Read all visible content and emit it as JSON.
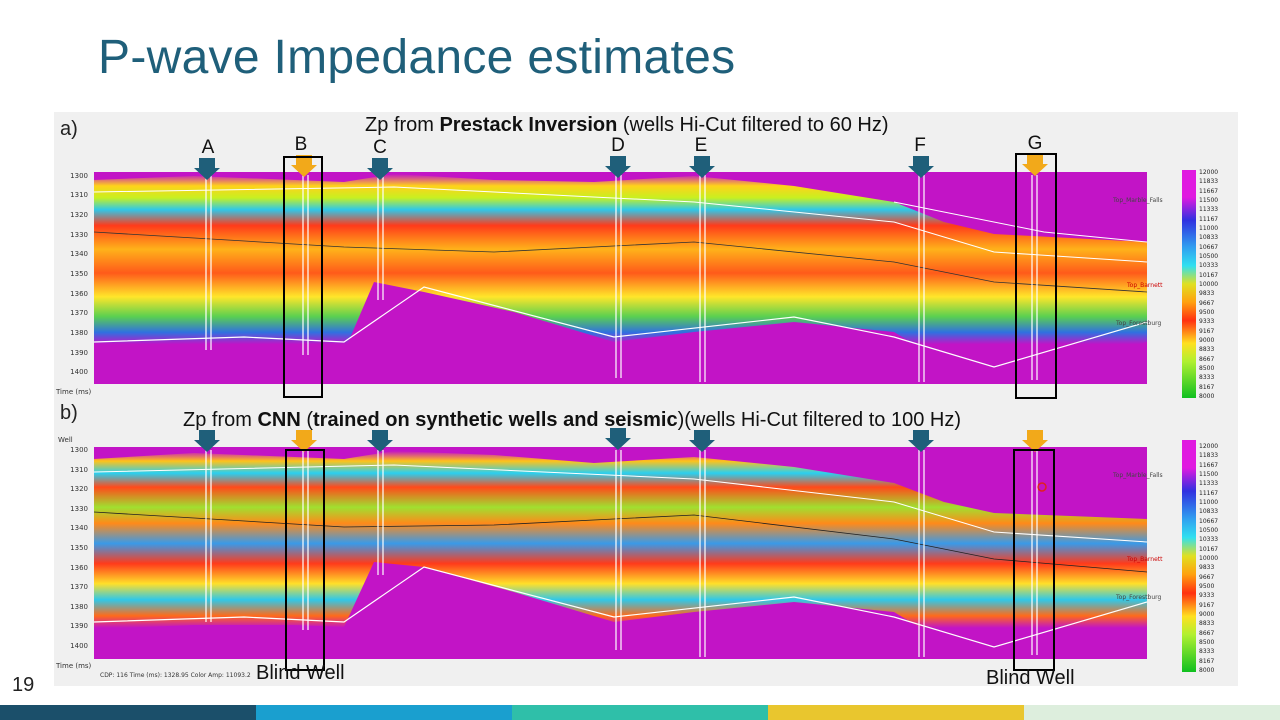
{
  "title": "P-wave Impedance estimates",
  "page_number": "19",
  "panel_a": {
    "letter": "a)",
    "caption_pre": "Zp from ",
    "caption_bold": "Prestack Inversion",
    "caption_post": " (wells Hi-Cut filtered to 60 Hz)",
    "axis_label": "Time (ms)",
    "ticks": [
      "1300",
      "1310",
      "1320",
      "1330",
      "1340",
      "1350",
      "1360",
      "1370",
      "1380",
      "1390",
      "1400"
    ],
    "horizons": [
      "Top_Marble_Falls",
      "Top_Barnett",
      "Top_Forestburg"
    ]
  },
  "panel_b": {
    "letter": "b)",
    "caption_pre": "Zp from ",
    "caption_bold": "CNN",
    "caption_mid": " (",
    "caption_bold2": "trained on synthetic wells and seismic",
    "caption_post": ")(wells Hi-Cut filtered to 100 Hz)",
    "axis_label": "Time (ms)",
    "well_label": "Well",
    "ticks": [
      "1300",
      "1310",
      "1320",
      "1330",
      "1340",
      "1350",
      "1360",
      "1370",
      "1380",
      "1390",
      "1400"
    ],
    "horizons": [
      "Top_Marble_Falls",
      "Top_Barnett",
      "Top_Forestburg"
    ],
    "status": "CDP: 116  Time (ms): 1328.95  Color Amp: 11093.2"
  },
  "wells": [
    "A",
    "B",
    "C",
    "D",
    "E",
    "F",
    "G"
  ],
  "blind_well_label": "Blind Well",
  "colorbar": [
    "12000",
    "11833",
    "11667",
    "11500",
    "11333",
    "11167",
    "11000",
    "10833",
    "10667",
    "10500",
    "10333",
    "10167",
    "10000",
    "9833",
    "9667",
    "9500",
    "9333",
    "9167",
    "9000",
    "8833",
    "8667",
    "8500",
    "8333",
    "8167",
    "8000"
  ],
  "colors": {
    "title": "#1f5f7a",
    "magenta": "#c214c6",
    "blind_arrow": "#f2a91a",
    "well_arrow": "#1f5f7a",
    "footer": [
      "#1b4f6a",
      "#1a9fcf",
      "#2fbfa9",
      "#e9c62e",
      "#ddeedd"
    ]
  }
}
